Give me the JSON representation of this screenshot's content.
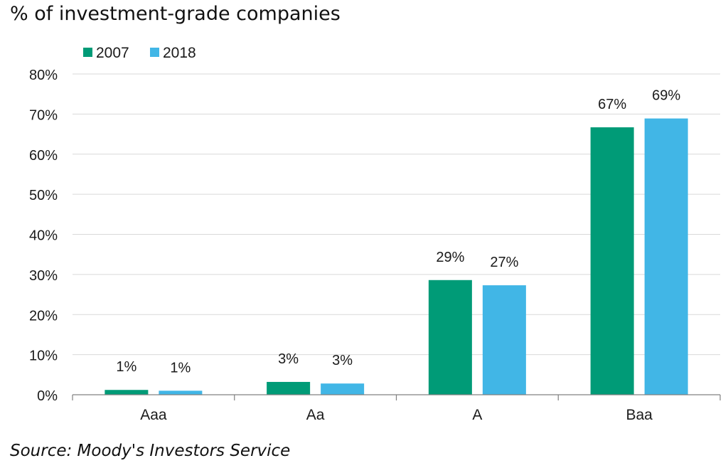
{
  "chart_data": {
    "type": "bar",
    "title": "% of investment-grade companies",
    "source": "Source: Moody's Investors Service",
    "categories": [
      "Aaa",
      "Aa",
      "A",
      "Baa"
    ],
    "series": [
      {
        "name": "2007",
        "values": [
          1.2,
          3.2,
          28.6,
          66.7
        ],
        "labels": [
          "1%",
          "3%",
          "29%",
          "67%"
        ],
        "color": "#009b77"
      },
      {
        "name": "2018",
        "values": [
          1.0,
          2.8,
          27.3,
          68.9
        ],
        "labels": [
          "1%",
          "3%",
          "27%",
          "69%"
        ],
        "color": "#41b6e6"
      }
    ],
    "ylim": [
      0,
      80
    ],
    "yticks": [
      0,
      10,
      20,
      30,
      40,
      50,
      60,
      70,
      80
    ],
    "ytick_labels": [
      "0%",
      "10%",
      "20%",
      "30%",
      "40%",
      "50%",
      "60%",
      "70%",
      "80%"
    ],
    "grid": true,
    "legend_position": "top-left",
    "gridline_color": "#d9d9d9",
    "axis_color": "#808080"
  }
}
